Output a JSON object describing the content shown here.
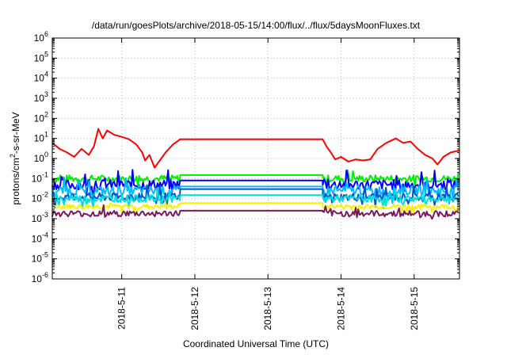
{
  "chart_data": {
    "type": "line",
    "title": "/data/run/goesPlots/archive/2018-05-15/14:00/flux/../flux/5daysMoonFluxes.txt",
    "xlabel": "Coordinated Universal Time (UTC)",
    "ylabel": {
      "base": "protons/cm",
      "sup": "2",
      "rest": "-s-sr-MeV"
    },
    "y_scale": "log",
    "ylim_exp": [
      -6,
      6
    ],
    "y_ticks": [
      {
        "e": -6,
        "base": "10",
        "exp": "-6"
      },
      {
        "e": -5,
        "base": "10",
        "exp": "-5"
      },
      {
        "e": -4,
        "base": "10",
        "exp": "-4"
      },
      {
        "e": -3,
        "base": "10",
        "exp": "-3"
      },
      {
        "e": -2,
        "base": "10",
        "exp": "-2"
      },
      {
        "e": -1,
        "base": "10",
        "exp": "-1"
      },
      {
        "e": 0,
        "base": "10",
        "exp": "0"
      },
      {
        "e": 1,
        "base": "10",
        "exp": "1"
      },
      {
        "e": 2,
        "base": "10",
        "exp": "2"
      },
      {
        "e": 3,
        "base": "10",
        "exp": "3"
      },
      {
        "e": 4,
        "base": "10",
        "exp": "4"
      },
      {
        "e": 5,
        "base": "10",
        "exp": "5"
      },
      {
        "e": 6,
        "base": "10",
        "exp": "6"
      }
    ],
    "xlim_days": [
      10.05,
      15.62
    ],
    "x_ticks": [
      {
        "day": 11,
        "label": "2018-5-11"
      },
      {
        "day": 12,
        "label": "2018-5-12"
      },
      {
        "day": 13,
        "label": "2018-5-13"
      },
      {
        "day": 14,
        "label": "2018-5-14"
      },
      {
        "day": 15,
        "label": "2018-5-15"
      }
    ],
    "grid": true,
    "gap_days": [
      11.8,
      13.75
    ],
    "series": [
      {
        "color": "#ff0000",
        "gap_value": 9,
        "points": [
          [
            10.05,
            6
          ],
          [
            10.15,
            3
          ],
          [
            10.25,
            2
          ],
          [
            10.35,
            1.2
          ],
          [
            10.45,
            3
          ],
          [
            10.55,
            1.5
          ],
          [
            10.62,
            4
          ],
          [
            10.68,
            30
          ],
          [
            10.74,
            10
          ],
          [
            10.8,
            25
          ],
          [
            10.9,
            15
          ],
          [
            11.0,
            12
          ],
          [
            11.1,
            9
          ],
          [
            11.2,
            5
          ],
          [
            11.28,
            2
          ],
          [
            11.32,
            0.8
          ],
          [
            11.38,
            1.5
          ],
          [
            11.45,
            0.35
          ],
          [
            11.52,
            0.8
          ],
          [
            11.6,
            2
          ],
          [
            11.7,
            5
          ],
          [
            11.8,
            9
          ],
          [
            13.75,
            9
          ],
          [
            13.8,
            4
          ],
          [
            13.86,
            2
          ],
          [
            13.92,
            0.9
          ],
          [
            14.0,
            1.2
          ],
          [
            14.1,
            0.7
          ],
          [
            14.2,
            0.9
          ],
          [
            14.3,
            0.8
          ],
          [
            14.4,
            0.9
          ],
          [
            14.5,
            3
          ],
          [
            14.62,
            6
          ],
          [
            14.75,
            10
          ],
          [
            14.85,
            6
          ],
          [
            14.95,
            7
          ],
          [
            15.05,
            3
          ],
          [
            15.15,
            1.5
          ],
          [
            15.25,
            1.0
          ],
          [
            15.32,
            0.5
          ],
          [
            15.4,
            1.2
          ],
          [
            15.5,
            2
          ],
          [
            15.62,
            2.5
          ]
        ]
      },
      {
        "color": "#00ee00",
        "base": 0.1,
        "gap_value": 0.15,
        "noise": 0.35
      },
      {
        "color": "#0000ff",
        "base": 0.05,
        "gap_value": 0.08,
        "noise": 0.5
      },
      {
        "color": "#00bbff",
        "base": 0.025,
        "gap_value": 0.04,
        "noise": 0.45
      },
      {
        "color": "#0055cc",
        "base": 0.012,
        "gap_value": 0.03,
        "noise": 0.4
      },
      {
        "color": "#00dddd",
        "base": 0.01,
        "gap_value": 0.015,
        "noise": 0.35
      },
      {
        "color": "#ffee00",
        "base": 0.004,
        "gap_value": 0.006,
        "noise": 0.25
      },
      {
        "color": "#7a1a5a",
        "base": 0.0018,
        "gap_value": 0.0025,
        "noise": 0.3
      }
    ]
  }
}
